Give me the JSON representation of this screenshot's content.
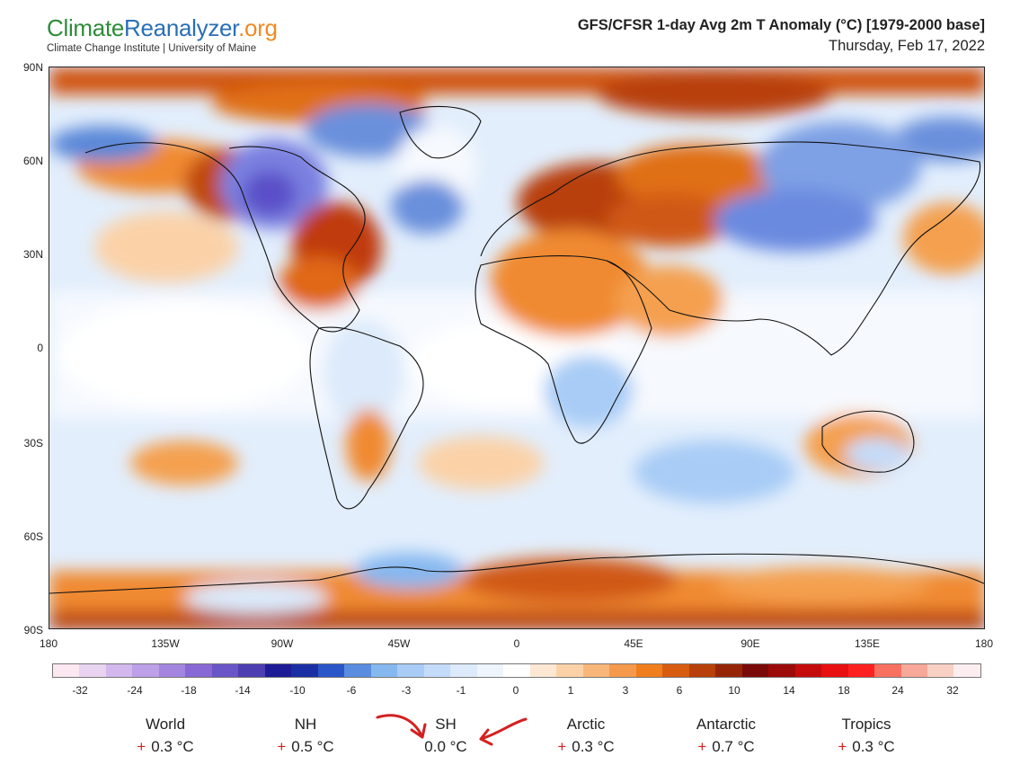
{
  "header": {
    "logo_part1": "Climate",
    "logo_part2": "Reanalyzer",
    "logo_part3": ".org",
    "logo_subtitle": "Climate Change Institute | University of Maine",
    "title": "GFS/CFSR 1-day Avg 2m T Anomaly (°C) [1979-2000 base]",
    "date": "Thursday, Feb 17, 2022"
  },
  "map": {
    "lat_labels": [
      "90N",
      "60N",
      "30N",
      "0",
      "30S",
      "60S",
      "90S"
    ],
    "lon_labels": [
      "180",
      "135W",
      "90W",
      "45W",
      "0",
      "45E",
      "90E",
      "135E",
      "180"
    ]
  },
  "colorbar": {
    "colors": [
      "#fbe8f0",
      "#e8d4f0",
      "#d2b8ec",
      "#bca0e8",
      "#a385e0",
      "#8768d4",
      "#6a55c6",
      "#4d3fb2",
      "#1d1b95",
      "#1b2fa4",
      "#2b56c8",
      "#5a8ce0",
      "#86b8f0",
      "#a8ccf6",
      "#c4dcfa",
      "#dceafb",
      "#eef5fd",
      "#ffffff",
      "#fde8d4",
      "#fbd2a8",
      "#f8b678",
      "#f59a4c",
      "#f07e1c",
      "#d85c10",
      "#b8400a",
      "#962508",
      "#7a0a08",
      "#9c0a0a",
      "#c40c0c",
      "#e81010",
      "#ff2020",
      "#f87060",
      "#f8a898",
      "#f8d0c4",
      "#fceef0"
    ],
    "labels": [
      "-32",
      "-24",
      "-18",
      "-14",
      "-10",
      "-6",
      "-3",
      "-1",
      "0",
      "1",
      "3",
      "6",
      "10",
      "14",
      "18",
      "24",
      "32"
    ]
  },
  "stats": [
    {
      "name": "World",
      "sign": "+",
      "value": "0.3 °C"
    },
    {
      "name": "NH",
      "sign": "+",
      "value": "0.5 °C"
    },
    {
      "name": "SH",
      "sign": "",
      "value": "0.0 °C"
    },
    {
      "name": "Arctic",
      "sign": "+",
      "value": "0.3 °C"
    },
    {
      "name": "Antarctic",
      "sign": "+",
      "value": "0.7 °C"
    },
    {
      "name": "Tropics",
      "sign": "+",
      "value": "0.3 °C"
    }
  ],
  "annotation_color": "#d42020"
}
